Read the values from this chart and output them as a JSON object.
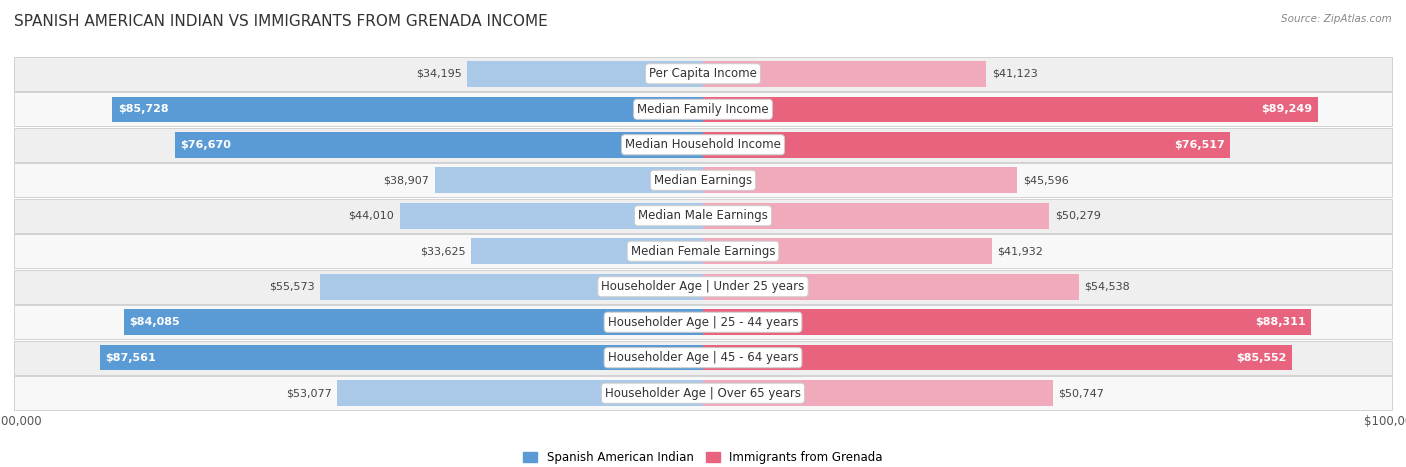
{
  "title": "SPANISH AMERICAN INDIAN VS IMMIGRANTS FROM GRENADA INCOME",
  "source": "Source: ZipAtlas.com",
  "categories": [
    "Per Capita Income",
    "Median Family Income",
    "Median Household Income",
    "Median Earnings",
    "Median Male Earnings",
    "Median Female Earnings",
    "Householder Age | Under 25 years",
    "Householder Age | 25 - 44 years",
    "Householder Age | 45 - 64 years",
    "Householder Age | Over 65 years"
  ],
  "left_values": [
    34195,
    85728,
    76670,
    38907,
    44010,
    33625,
    55573,
    84085,
    87561,
    53077
  ],
  "right_values": [
    41123,
    89249,
    76517,
    45596,
    50279,
    41932,
    54538,
    88311,
    85552,
    50747
  ],
  "left_labels": [
    "$34,195",
    "$85,728",
    "$76,670",
    "$38,907",
    "$44,010",
    "$33,625",
    "$55,573",
    "$84,085",
    "$87,561",
    "$53,077"
  ],
  "right_labels": [
    "$41,123",
    "$89,249",
    "$76,517",
    "$45,596",
    "$50,279",
    "$41,932",
    "$54,538",
    "$88,311",
    "$85,552",
    "$50,747"
  ],
  "left_color_dark": "#5b9bd5",
  "left_color_light": "#aac9e8",
  "right_color_dark": "#e8637e",
  "right_color_light": "#f0aabb",
  "threshold": 60000,
  "max_value": 100000,
  "legend_left": "Spanish American Indian",
  "legend_right": "Immigrants from Grenada",
  "bg_color": "#ffffff",
  "title_fontsize": 11,
  "label_fontsize": 8.5,
  "value_label_fontsize": 8
}
